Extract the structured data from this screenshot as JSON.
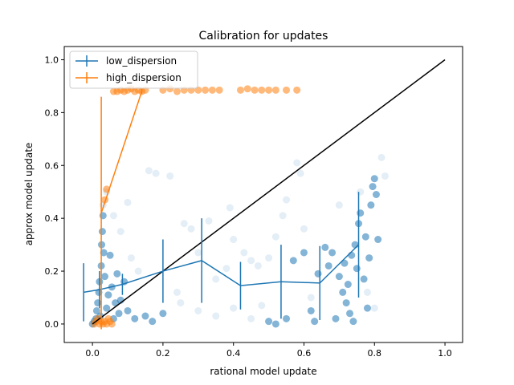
{
  "chart_data": {
    "type": "scatter",
    "title": "Calibration for updates",
    "xlabel": "rational model update",
    "ylabel": "approx model update",
    "xlim": [
      -0.08,
      1.05
    ],
    "ylim": [
      -0.07,
      1.05
    ],
    "xticks": [
      0.0,
      0.2,
      0.4,
      0.6,
      0.8,
      1.0
    ],
    "yticks": [
      0.0,
      0.2,
      0.4,
      0.6,
      0.8,
      1.0
    ],
    "tick_labels_x": [
      "0.0",
      "0.2",
      "0.4",
      "0.6",
      "0.8",
      "1.0"
    ],
    "tick_labels_y": [
      "0.0",
      "0.2",
      "0.4",
      "0.6",
      "0.8",
      "1.0"
    ],
    "legend_position": "top-left",
    "grid": false,
    "identity_line": {
      "x": [
        0.0,
        1.0
      ],
      "y": [
        0.0,
        1.0
      ],
      "color": "#000000"
    },
    "series": [
      {
        "name": "low_dispersion",
        "color": "#1f77b4",
        "binned": {
          "x": [
            -0.025,
            0.02,
            0.085,
            0.2,
            0.31,
            0.42,
            0.535,
            0.645,
            0.755
          ],
          "y": [
            0.12,
            0.13,
            0.15,
            0.2,
            0.24,
            0.145,
            0.16,
            0.155,
            0.3
          ],
          "yerr": [
            0.11,
            0.07,
            0.04,
            0.12,
            0.16,
            0.09,
            0.14,
            0.14,
            0.2
          ]
        },
        "points": [
          [
            0.0,
            0.0
          ],
          [
            0.005,
            0.01
          ],
          [
            0.01,
            0.02
          ],
          [
            0.012,
            0.05
          ],
          [
            0.015,
            0.08
          ],
          [
            0.018,
            0.12
          ],
          [
            0.02,
            0.16
          ],
          [
            0.022,
            0.03
          ],
          [
            0.025,
            0.22
          ],
          [
            0.026,
            0.3
          ],
          [
            0.028,
            0.35
          ],
          [
            0.03,
            0.41
          ],
          [
            0.032,
            0.27
          ],
          [
            0.035,
            0.18
          ],
          [
            0.04,
            0.06
          ],
          [
            0.045,
            0.11
          ],
          [
            0.05,
            0.26
          ],
          [
            0.055,
            0.14
          ],
          [
            0.06,
            0.02
          ],
          [
            0.065,
            0.08
          ],
          [
            0.07,
            0.19
          ],
          [
            0.075,
            0.04
          ],
          [
            0.08,
            0.09
          ],
          [
            0.09,
            0.16
          ],
          [
            0.1,
            0.05
          ],
          [
            0.12,
            0.02
          ],
          [
            0.15,
            0.03
          ],
          [
            0.17,
            0.01
          ],
          [
            0.2,
            0.04
          ],
          [
            0.5,
            0.01
          ],
          [
            0.52,
            0.0
          ],
          [
            0.55,
            0.02
          ],
          [
            0.57,
            0.24
          ],
          [
            0.6,
            0.27
          ],
          [
            0.62,
            0.05
          ],
          [
            0.63,
            0.01
          ],
          [
            0.64,
            0.19
          ],
          [
            0.66,
            0.29
          ],
          [
            0.67,
            0.22
          ],
          [
            0.68,
            0.27
          ],
          [
            0.69,
            0.02
          ],
          [
            0.7,
            0.18
          ],
          [
            0.71,
            0.12
          ],
          [
            0.715,
            0.23
          ],
          [
            0.72,
            0.08
          ],
          [
            0.725,
            0.15
          ],
          [
            0.73,
            0.04
          ],
          [
            0.735,
            0.26
          ],
          [
            0.74,
            0.01
          ],
          [
            0.745,
            0.3
          ],
          [
            0.75,
            0.21
          ],
          [
            0.755,
            0.38
          ],
          [
            0.76,
            0.42
          ],
          [
            0.77,
            0.17
          ],
          [
            0.775,
            0.33
          ],
          [
            0.78,
            0.06
          ],
          [
            0.785,
            0.25
          ],
          [
            0.79,
            0.45
          ],
          [
            0.795,
            0.52
          ],
          [
            0.8,
            0.55
          ],
          [
            0.805,
            0.49
          ],
          [
            0.81,
            0.32
          ]
        ],
        "faint_points": [
          [
            0.03,
            0.45
          ],
          [
            0.04,
            0.5
          ],
          [
            0.06,
            0.41
          ],
          [
            0.08,
            0.35
          ],
          [
            0.1,
            0.46
          ],
          [
            0.11,
            0.25
          ],
          [
            0.13,
            0.2
          ],
          [
            0.16,
            0.58
          ],
          [
            0.18,
            0.57
          ],
          [
            0.22,
            0.56
          ],
          [
            0.24,
            0.12
          ],
          [
            0.26,
            0.38
          ],
          [
            0.28,
            0.36
          ],
          [
            0.3,
            0.27
          ],
          [
            0.33,
            0.39
          ],
          [
            0.35,
            0.17
          ],
          [
            0.38,
            0.21
          ],
          [
            0.39,
            0.44
          ],
          [
            0.4,
            0.32
          ],
          [
            0.43,
            0.27
          ],
          [
            0.45,
            0.24
          ],
          [
            0.47,
            0.22
          ],
          [
            0.5,
            0.25
          ],
          [
            0.52,
            0.33
          ],
          [
            0.54,
            0.41
          ],
          [
            0.55,
            0.47
          ],
          [
            0.58,
            0.61
          ],
          [
            0.59,
            0.57
          ],
          [
            0.6,
            0.36
          ],
          [
            0.62,
            0.1
          ],
          [
            0.25,
            0.08
          ],
          [
            0.3,
            0.05
          ],
          [
            0.35,
            0.03
          ],
          [
            0.4,
            0.06
          ],
          [
            0.45,
            0.02
          ],
          [
            0.48,
            0.07
          ],
          [
            0.82,
            0.63
          ],
          [
            0.83,
            0.56
          ],
          [
            0.78,
            0.12
          ],
          [
            0.8,
            0.06
          ],
          [
            0.76,
            0.5
          ],
          [
            0.7,
            0.45
          ]
        ]
      },
      {
        "name": "high_dispersion",
        "color": "#ff7f0e",
        "binned": {
          "x": [
            0.025,
            0.14
          ],
          "y": [
            0.42,
            0.88
          ],
          "yerr": [
            0.44,
            0.01
          ]
        },
        "points": [
          [
            0.005,
            0.0
          ],
          [
            0.01,
            0.01
          ],
          [
            0.015,
            0.02
          ],
          [
            0.02,
            0.0
          ],
          [
            0.025,
            0.01
          ],
          [
            0.03,
            0.0
          ],
          [
            0.035,
            0.01
          ],
          [
            0.04,
            0.0
          ],
          [
            0.045,
            0.02
          ],
          [
            0.05,
            0.01
          ],
          [
            0.055,
            0.0
          ],
          [
            0.035,
            0.47
          ],
          [
            0.04,
            0.51
          ],
          [
            0.06,
            0.88
          ],
          [
            0.07,
            0.88
          ],
          [
            0.08,
            0.885
          ],
          [
            0.09,
            0.88
          ],
          [
            0.1,
            0.885
          ],
          [
            0.11,
            0.89
          ],
          [
            0.12,
            0.88
          ],
          [
            0.13,
            0.885
          ],
          [
            0.14,
            0.88
          ],
          [
            0.15,
            0.885
          ],
          [
            0.2,
            0.885
          ],
          [
            0.22,
            0.89
          ],
          [
            0.24,
            0.88
          ],
          [
            0.26,
            0.885
          ],
          [
            0.28,
            0.885
          ],
          [
            0.3,
            0.885
          ],
          [
            0.32,
            0.885
          ],
          [
            0.34,
            0.885
          ],
          [
            0.36,
            0.885
          ],
          [
            0.42,
            0.885
          ],
          [
            0.44,
            0.89
          ],
          [
            0.46,
            0.885
          ],
          [
            0.48,
            0.885
          ],
          [
            0.5,
            0.885
          ],
          [
            0.52,
            0.885
          ],
          [
            0.55,
            0.885
          ],
          [
            0.58,
            0.885
          ]
        ]
      }
    ]
  }
}
